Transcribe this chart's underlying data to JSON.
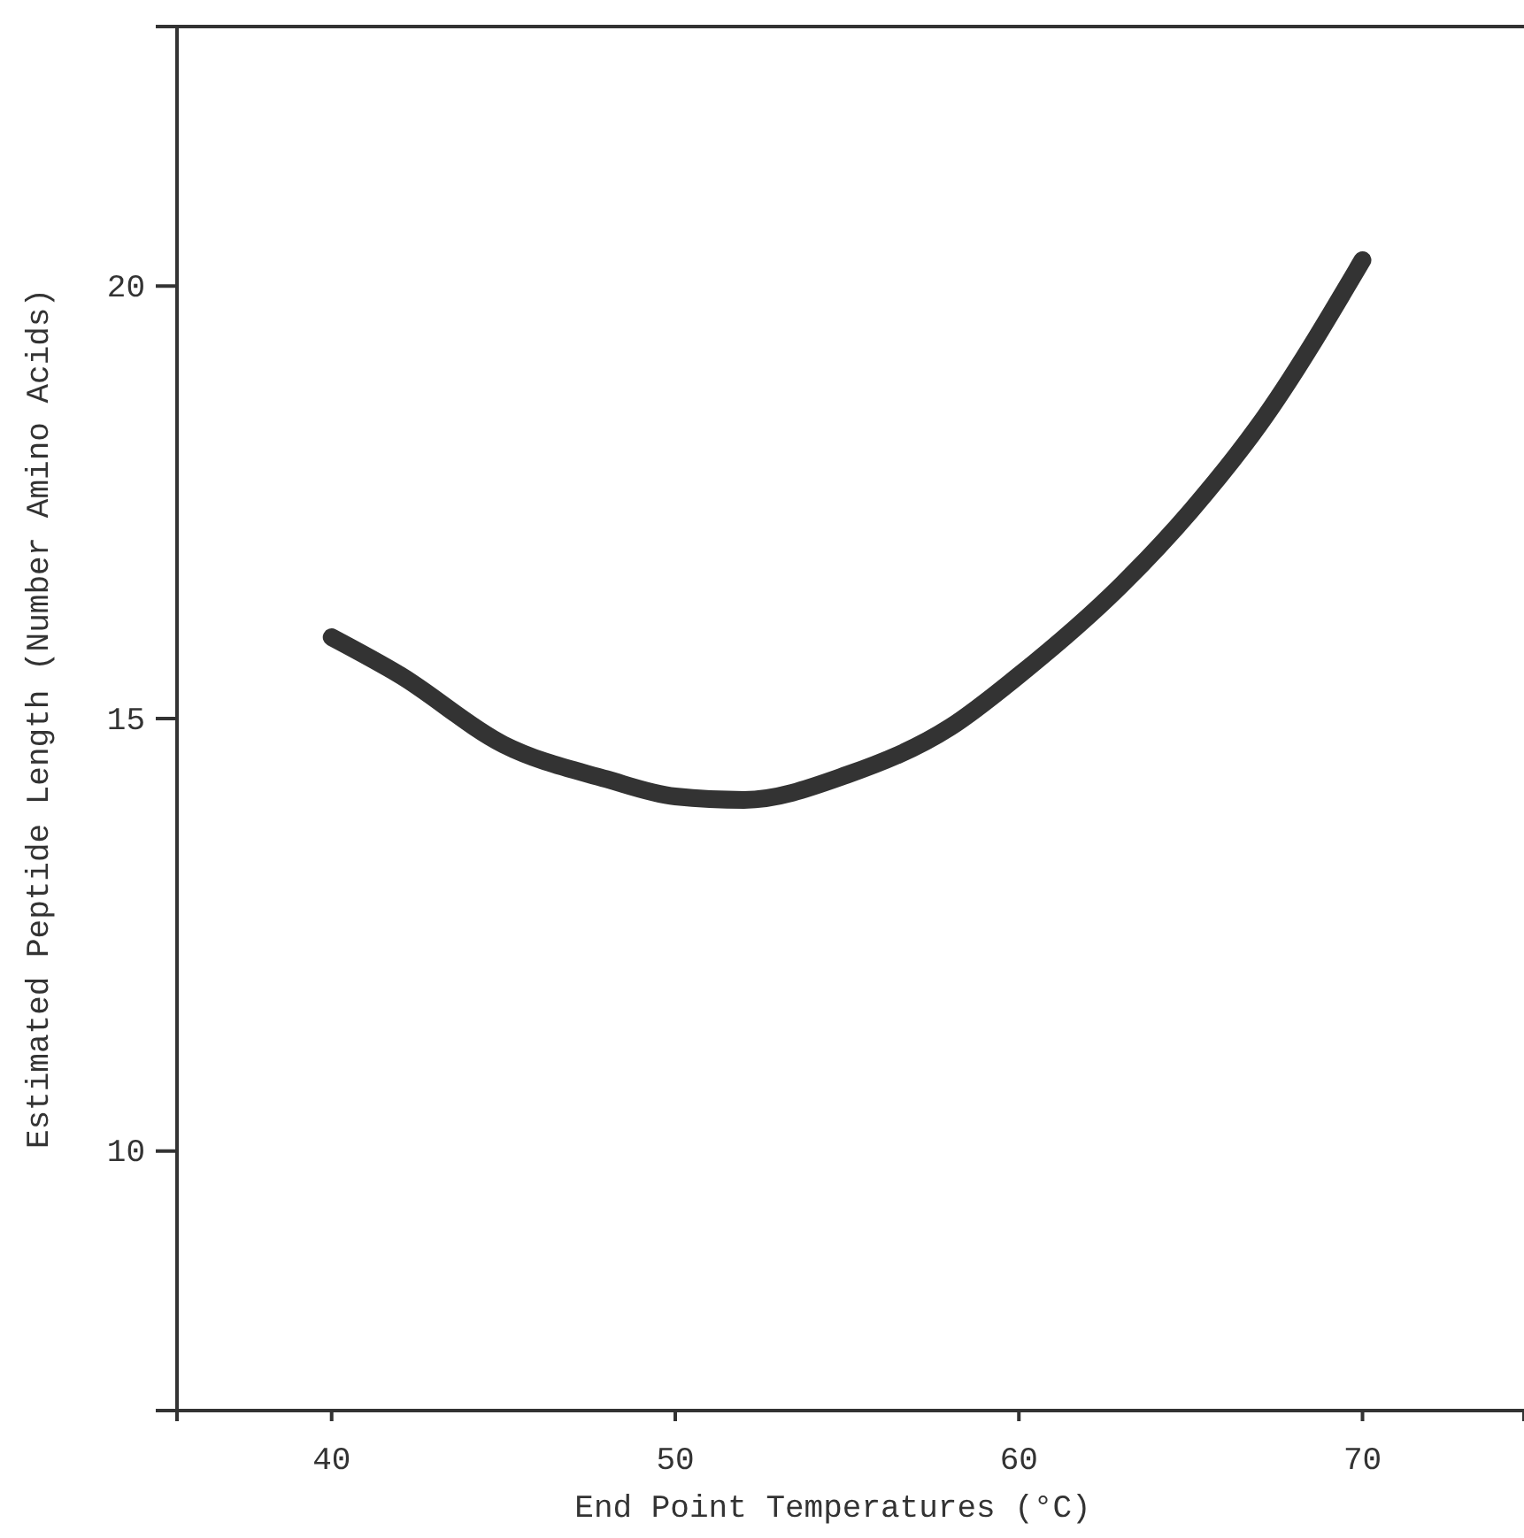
{
  "chart_data": {
    "type": "line",
    "xlabel": "End Point Temperatures (°C)",
    "ylabel": "Estimated Peptide Length (Number Amino Acids)",
    "x": [
      40,
      42,
      45,
      48,
      50,
      52,
      55,
      58,
      60,
      63,
      65,
      67,
      70
    ],
    "series": [
      {
        "color": "#333333",
        "values": [
          15.94,
          15.5,
          14.7,
          14.3,
          14.1,
          14.06,
          14.35,
          14.9,
          15.5,
          16.55,
          17.4,
          18.4,
          20.3
        ]
      }
    ],
    "xlim": [
      35.5,
      74.7
    ],
    "ylim": [
      7,
      23
    ],
    "xticks": [
      40,
      50,
      60,
      70
    ],
    "yticks": [
      10,
      15,
      20
    ],
    "grid": false,
    "marker": "none",
    "line_style": "solid"
  }
}
